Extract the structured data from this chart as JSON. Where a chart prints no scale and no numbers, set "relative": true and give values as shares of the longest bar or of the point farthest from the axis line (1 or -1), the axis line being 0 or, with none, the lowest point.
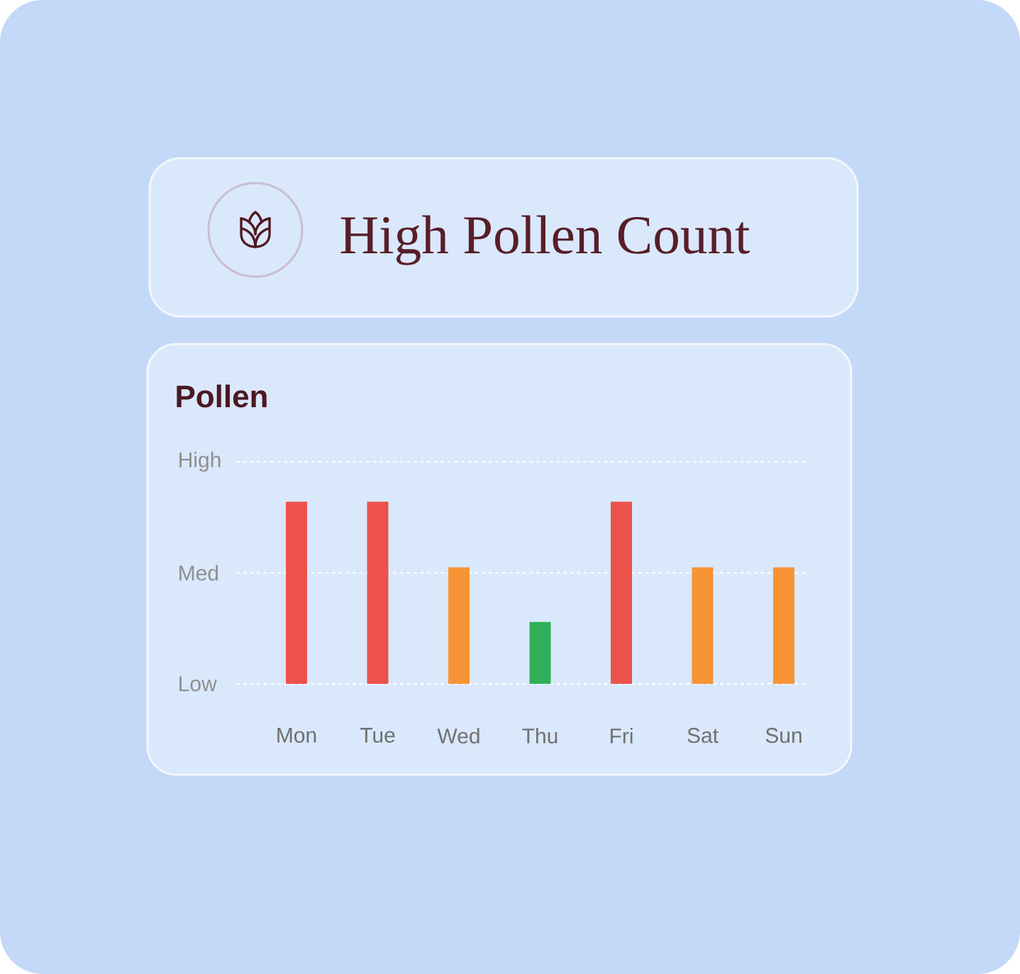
{
  "chart_data": {
    "type": "bar",
    "title": "High Pollen Count",
    "subtitle": "Pollen",
    "categories": [
      "Mon",
      "Tue",
      "Wed",
      "Thu",
      "Fri",
      "Sat",
      "Sun"
    ],
    "values": [
      1,
      1,
      0.64,
      0.34,
      1,
      0.64,
      0.64
    ],
    "colors": [
      "#ec524b",
      "#ec524b",
      "#f79335",
      "#2eaf58",
      "#ec524b",
      "#f79335",
      "#f79335"
    ],
    "relative": true,
    "ref_lines": [
      {
        "axis": "y",
        "value": 0,
        "label": "Low",
        "color": "#ffffff",
        "line_style": "dashed"
      },
      {
        "axis": "y",
        "value": 0.61,
        "label": "Med",
        "color": "#ffffff",
        "line_style": "dashed"
      },
      {
        "axis": "y",
        "value": 1.22,
        "label": "High",
        "color": "#ffffff",
        "line_style": "dashed"
      }
    ]
  }
}
